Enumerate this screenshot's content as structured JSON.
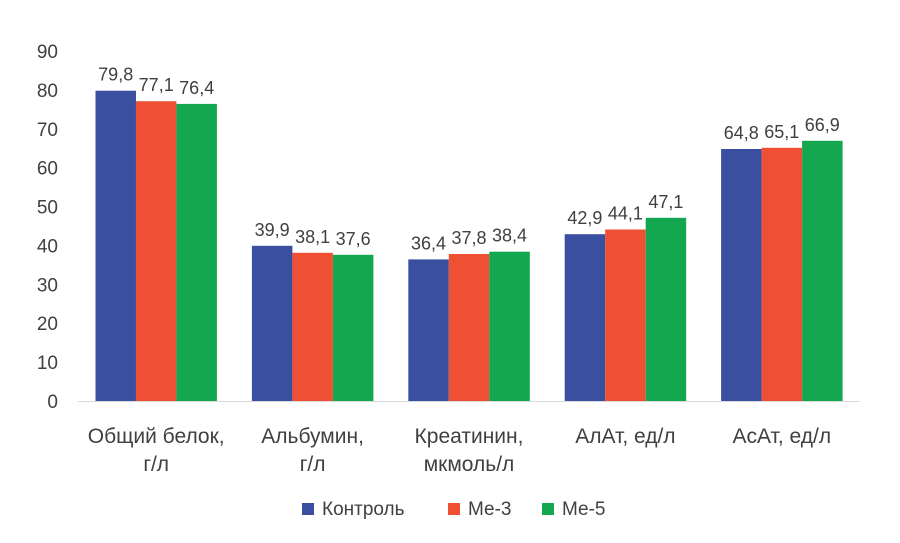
{
  "chart_data": {
    "type": "bar",
    "categories": [
      [
        "Общий белок,",
        "г/л"
      ],
      [
        "Альбумин,",
        "г/л"
      ],
      [
        "Креатинин,",
        "мкмоль/л"
      ],
      [
        "АлАт, ед/л"
      ],
      [
        "АсАт, ед/л"
      ]
    ],
    "series": [
      {
        "name": "Контроль",
        "color": "#3a4fa0",
        "values": [
          79.8,
          39.9,
          36.4,
          42.9,
          64.8
        ],
        "labels": [
          "79,8",
          "39,9",
          "36,4",
          "42,9",
          "64,8"
        ]
      },
      {
        "name": "Ме-3",
        "color": "#ef5033",
        "values": [
          77.1,
          38.1,
          37.8,
          44.1,
          65.1
        ],
        "labels": [
          "77,1",
          "38,1",
          "37,8",
          "44,1",
          "65,1"
        ]
      },
      {
        "name": "Ме-5",
        "color": "#13a84f",
        "values": [
          76.4,
          37.6,
          38.4,
          47.1,
          66.9
        ],
        "labels": [
          "76,4",
          "37,6",
          "38,4",
          "47,1",
          "66,9"
        ]
      }
    ],
    "ylim": [
      0,
      90
    ],
    "yticks": [
      0,
      10,
      20,
      30,
      40,
      50,
      60,
      70,
      80,
      90
    ],
    "grid": false,
    "legend_position": "bottom"
  }
}
